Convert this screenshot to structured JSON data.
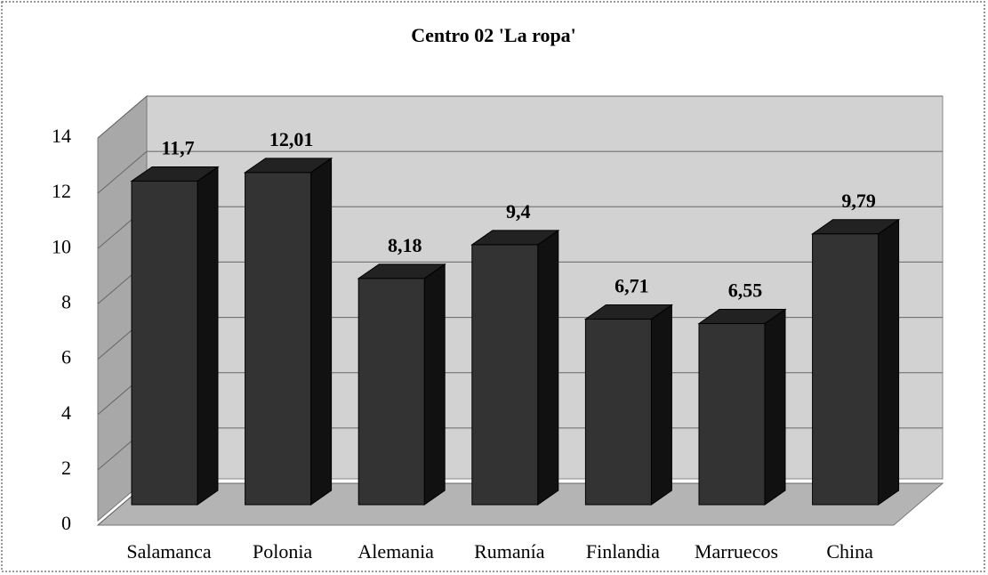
{
  "chart_data": {
    "type": "bar3d",
    "title": "Centro 02 'La ropa'",
    "categories": [
      "Salamanca",
      "Polonia",
      "Alemania",
      "Rumanía",
      "Finlandia",
      "Marruecos",
      "China"
    ],
    "values": [
      11.7,
      12.01,
      8.18,
      9.4,
      6.71,
      6.55,
      9.79
    ],
    "value_labels": [
      "11,7",
      "12,01",
      "8,18",
      "9,4",
      "6,71",
      "6,55",
      "9,79"
    ],
    "color": "#333333",
    "ylim": [
      0,
      14
    ],
    "yticks": [
      0,
      2,
      4,
      6,
      8,
      10,
      12,
      14
    ],
    "grid": true
  }
}
